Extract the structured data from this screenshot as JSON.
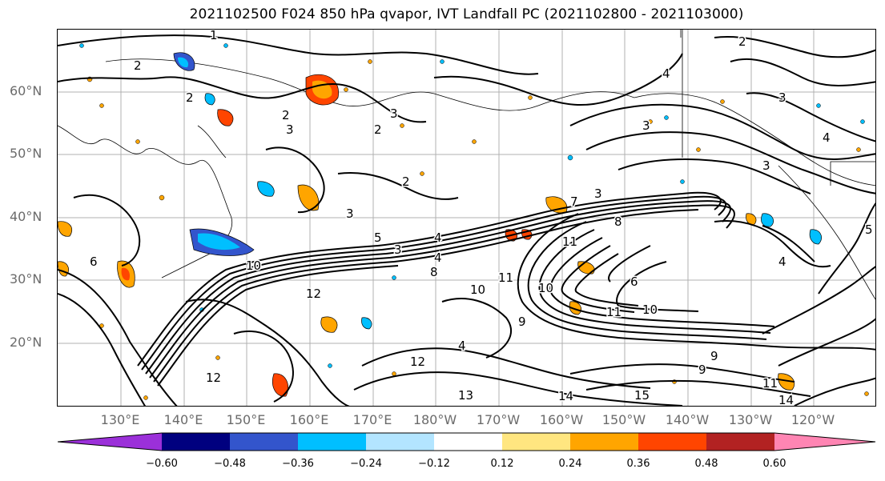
{
  "title": "2021102500 F024 850 hPa qvapor, IVT Landfall PC (2021102800 - 2021103000)",
  "lat_labels": [
    "60°N",
    "50°N",
    "40°N",
    "30°N",
    "20°N"
  ],
  "lon_labels": [
    "130°E",
    "140°E",
    "150°E",
    "160°E",
    "170°E",
    "180°W",
    "170°W",
    "160°W",
    "150°W",
    "140°W",
    "130°W",
    "120°W"
  ],
  "colorbar": {
    "colors": [
      "#9b30d9",
      "#00007f",
      "#3355cc",
      "#00bfff",
      "#b3e5ff",
      "#ffffff",
      "#ffe680",
      "#ffa500",
      "#ff4500",
      "#b22222",
      "#ff85b3"
    ],
    "tick_labels": [
      "−0.60",
      "−0.48",
      "−0.36",
      "−0.24",
      "−0.12",
      "0.12",
      "0.24",
      "0.36",
      "0.48",
      "0.60"
    ]
  },
  "contour_labels": [
    "1",
    "2",
    "2",
    "2",
    "2",
    "2",
    "2",
    "3",
    "3",
    "3",
    "3",
    "3",
    "3",
    "3",
    "3",
    "4",
    "4",
    "4",
    "4",
    "4",
    "4",
    "5",
    "5",
    "6",
    "6",
    "7",
    "8",
    "8",
    "9",
    "9",
    "9",
    "10",
    "10",
    "10",
    "10",
    "11",
    "11",
    "11",
    "11",
    "12",
    "12",
    "12",
    "13",
    "14",
    "14",
    "15"
  ]
}
